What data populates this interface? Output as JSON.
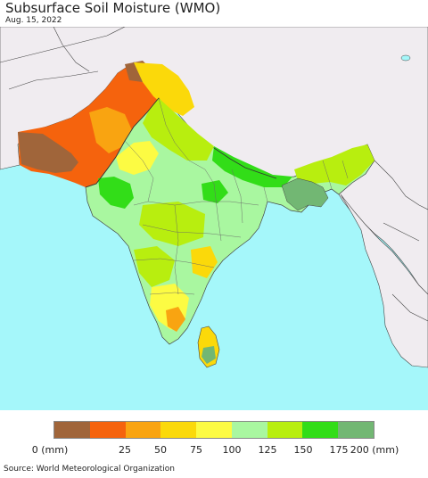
{
  "title": "Subsurface Soil Moisture (WMO)",
  "date": "Aug. 15, 2022",
  "source": "Source: World Meteorological Organization",
  "legend": {
    "labels": [
      "0 (mm)",
      "25",
      "50",
      "75",
      "100",
      "125",
      "150",
      "175",
      "200 (mm)"
    ],
    "colors": [
      "#a0653a",
      "#f5630d",
      "#f9a411",
      "#fbd90a",
      "#fcfb43",
      "#a9f7a0",
      "#b8ee0f",
      "#32dd18",
      "#72b773"
    ]
  },
  "map_colors": {
    "ocean": "#a5f7fa",
    "land_outside": "#f0ecf0",
    "border": "#444444"
  }
}
